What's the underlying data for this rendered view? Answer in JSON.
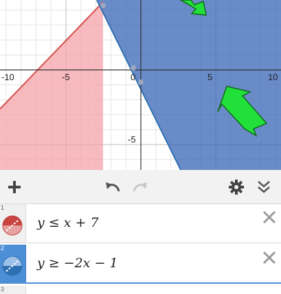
{
  "graph": {
    "x_ticks": [
      "-10",
      "-5",
      "0",
      "5",
      "10"
    ],
    "y_ticks": [
      "-5"
    ],
    "region_colors": {
      "red": "#f4a3a8",
      "blue": "#2f5fb3"
    },
    "arrow_color": "#22e03a"
  },
  "toolbar": {
    "add_icon": "plus-icon",
    "undo_icon": "undo-icon",
    "redo_icon": "redo-icon",
    "settings_icon": "gear-icon",
    "collapse_icon": "double-chevron-down-icon"
  },
  "expressions": [
    {
      "num": "1",
      "latex": "y ≤ x + 7",
      "color": "#c74440",
      "active": false
    },
    {
      "num": "2",
      "latex": "y ≥ −2x − 1",
      "color": "#2d70b3",
      "active": true
    },
    {
      "num": "3",
      "latex": "",
      "color": "",
      "active": false
    }
  ]
}
